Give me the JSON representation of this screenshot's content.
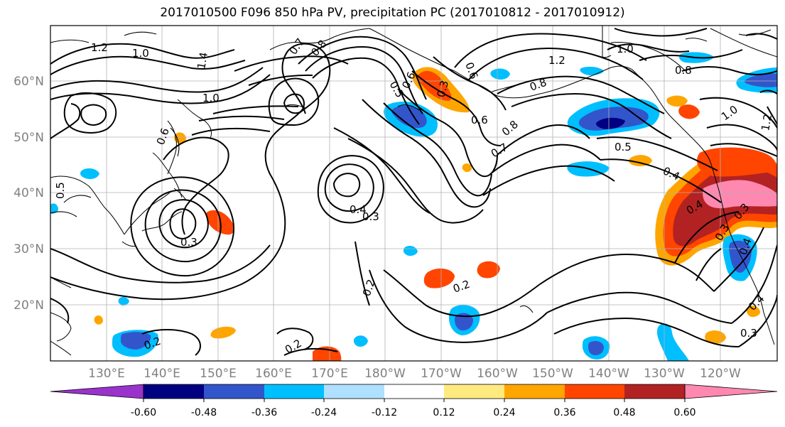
{
  "title": "2017010500 F096 850 hPa PV, precipitation PC (2017010812 - 2017010912)",
  "lat_labels": [
    "60°N",
    "50°N",
    "40°N",
    "30°N",
    "20°N"
  ],
  "lon_labels": [
    "130°E",
    "140°E",
    "150°E",
    "160°E",
    "170°E",
    "180°W",
    "170°W",
    "160°W",
    "150°W",
    "140°W",
    "130°W",
    "120°W"
  ],
  "colorbar": {
    "colors": [
      "#9933cc",
      "#000080",
      "#3355cc",
      "#00bfff",
      "#b0e0ff",
      "#ffffff",
      "#ffea80",
      "#ffa500",
      "#ff4500",
      "#b22222",
      "#ff88b0"
    ],
    "tick_labels": [
      "-0.60",
      "-0.48",
      "-0.36",
      "-0.24",
      "-0.12",
      "0.12",
      "0.24",
      "0.36",
      "0.48",
      "0.60"
    ]
  },
  "contour_labels": [
    "1.2",
    "1.0",
    "1.4",
    "1.0",
    "0.8",
    "0.7",
    "0.6",
    "0.5",
    "0.6",
    "0.3",
    "0.8",
    "0.7",
    "1.2",
    "0.8",
    "0.6",
    "1.0",
    "0.5",
    "0.4",
    "0.4",
    "0.3",
    "0.2",
    "0.2",
    "0.3",
    "0.2",
    "0.3",
    "0.4",
    "0.2",
    "0.4",
    "0.3",
    "0.8",
    "1.0",
    "0.5",
    "0.6",
    "1.2",
    "0.4",
    "0.3"
  ],
  "colors": {
    "contour": "#000000",
    "coast": "#000000",
    "grid": "#b0b0b0"
  }
}
